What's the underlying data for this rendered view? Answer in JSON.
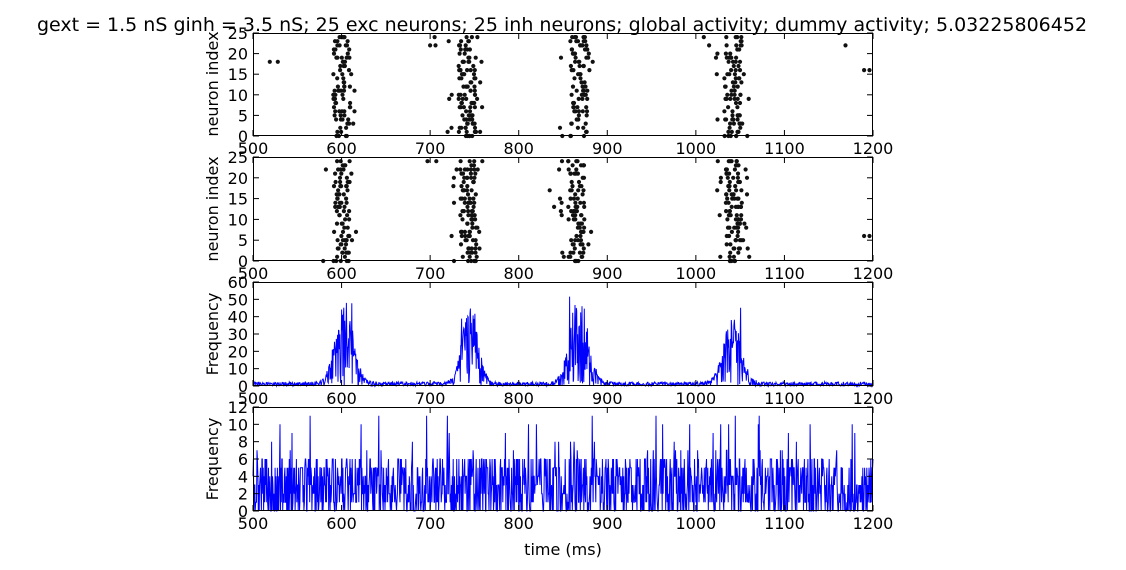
{
  "figure": {
    "title": "gext = 1.5 nS ginh = 3.5 nS; 25 exc neurons; 25 inh neurons; global activity; dummy activity; 5.03225806452",
    "colors": {
      "raster": "#111111",
      "trace": "#0000ff",
      "frame": "#000000"
    }
  },
  "chart_data": [
    {
      "type": "scatter",
      "panel": "excitatory-raster",
      "xlim": [
        500,
        1200
      ],
      "ylim": [
        0,
        25
      ],
      "xticks": [
        "500",
        "600",
        "700",
        "800",
        "900",
        "1000",
        "1100",
        "1200"
      ],
      "yticks": [
        "0",
        "5",
        "10",
        "15",
        "20",
        "25"
      ],
      "xlabel": "",
      "ylabel": "neuron index",
      "bursts": [
        {
          "center": 600,
          "width": 14,
          "left_outlier": 580
        },
        {
          "center": 742,
          "width": 14,
          "left_outlier": 722
        },
        {
          "center": 868,
          "width": 14,
          "left_outlier": 848
        },
        {
          "center": 1042,
          "width": 14,
          "left_outlier": 1022
        }
      ],
      "isolated_spikes": [
        {
          "x": 519,
          "y": 18
        },
        {
          "x": 528,
          "y": 18
        },
        {
          "x": 700,
          "y": 22
        },
        {
          "x": 706,
          "y": 22
        },
        {
          "x": 705,
          "y": 24
        },
        {
          "x": 1009,
          "y": 24
        },
        {
          "x": 1015,
          "y": 22
        },
        {
          "x": 1169,
          "y": 22
        },
        {
          "x": 1190,
          "y": 16
        },
        {
          "x": 1196,
          "y": 16
        }
      ]
    },
    {
      "type": "scatter",
      "panel": "inhibitory-raster",
      "xlim": [
        500,
        1200
      ],
      "ylim": [
        0,
        25
      ],
      "xticks": [
        "500",
        "600",
        "700",
        "800",
        "900",
        "1000",
        "1100",
        "1200"
      ],
      "yticks": [
        "0",
        "5",
        "10",
        "15",
        "20",
        "25"
      ],
      "xlabel": "",
      "ylabel": "neuron index",
      "bursts": [
        {
          "center": 600,
          "width": 13,
          "left_outlier": 582
        },
        {
          "center": 743,
          "width": 13,
          "left_outlier": 727
        },
        {
          "center": 865,
          "width": 13,
          "left_outlier": 848
        },
        {
          "center": 1043,
          "width": 13,
          "left_outlier": 1026
        }
      ],
      "isolated_spikes": [
        {
          "x": 697,
          "y": 24
        },
        {
          "x": 707,
          "y": 24
        },
        {
          "x": 835,
          "y": 17
        },
        {
          "x": 840,
          "y": 13
        },
        {
          "x": 1190,
          "y": 6
        },
        {
          "x": 1196,
          "y": 6
        }
      ]
    },
    {
      "type": "line",
      "panel": "global-activity",
      "xlim": [
        500,
        1200
      ],
      "ylim": [
        0,
        60
      ],
      "xticks": [
        "500",
        "600",
        "700",
        "800",
        "900",
        "1000",
        "1100",
        "1200"
      ],
      "yticks": [
        "0",
        "10",
        "20",
        "30",
        "40",
        "50",
        "60"
      ],
      "xlabel": "",
      "ylabel": "Frequency",
      "series": [
        {
          "baseline": 1.5,
          "peaks": [
            {
              "center": 603,
              "sigma": 10,
              "height": 40,
              "max": 49
            },
            {
              "center": 745,
              "sigma": 9,
              "height": 36,
              "max": 44
            },
            {
              "center": 868,
              "sigma": 10,
              "height": 44,
              "max": 54
            },
            {
              "center": 1041,
              "sigma": 10,
              "height": 32,
              "max": 53
            }
          ]
        }
      ]
    },
    {
      "type": "line",
      "panel": "dummy-activity",
      "xlim": [
        500,
        1200
      ],
      "ylim": [
        0,
        12
      ],
      "xticks": [
        "500",
        "600",
        "700",
        "800",
        "900",
        "1000",
        "1100",
        "1200"
      ],
      "yticks": [
        "0",
        "2",
        "4",
        "6",
        "8",
        "10",
        "12"
      ],
      "xlabel": "time (ms)",
      "ylabel": "Frequency",
      "series": [
        {
          "mean_level": 3,
          "max": 11,
          "min": 0
        }
      ]
    }
  ]
}
